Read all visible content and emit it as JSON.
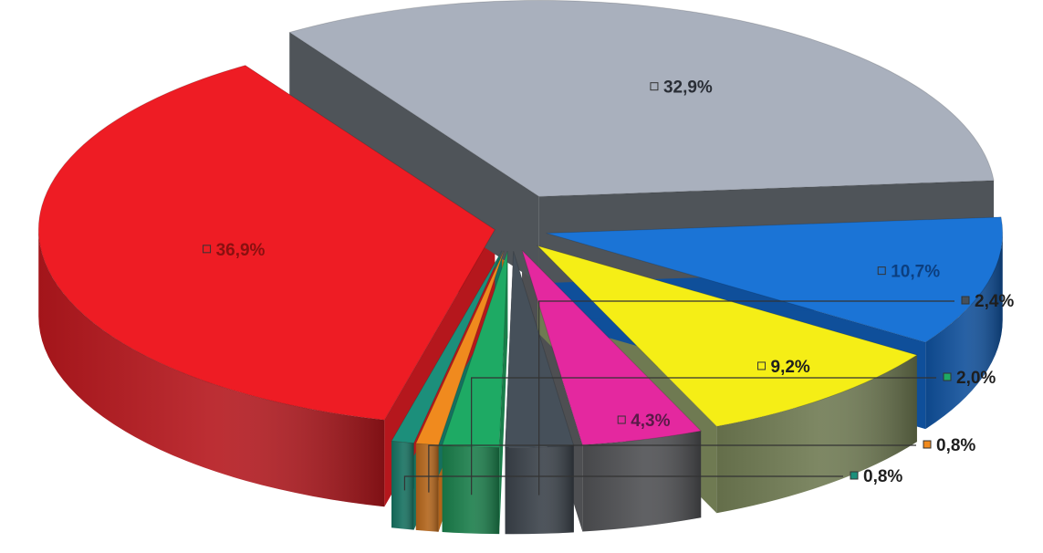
{
  "chart_data": {
    "type": "pie",
    "three_d": true,
    "exploded": true,
    "legend": "none",
    "slices": [
      {
        "label": "36,9%",
        "value": 36.9,
        "color": "#ee1c24",
        "side_color": "#b5171d"
      },
      {
        "label": "32,9%",
        "value": 32.9,
        "color": "#a9b0bd",
        "side_color": "#4f5459"
      },
      {
        "label": "10,7%",
        "value": 10.7,
        "color": "#1b74d6",
        "side_color": "#0f4f9a"
      },
      {
        "label": "9,2%",
        "value": 9.2,
        "color": "#f5ee16",
        "side_color": "#6f7a52"
      },
      {
        "label": "4,3%",
        "value": 4.3,
        "color": "#e4289f",
        "side_color": "#4e4f52"
      },
      {
        "label": "2,4%",
        "value": 2.4,
        "color": "#46505a",
        "side_color": "#3a4149"
      },
      {
        "label": "2,0%",
        "value": 2.0,
        "color": "#1eaa64",
        "side_color": "#1a7d4a"
      },
      {
        "label": "0,8%",
        "value": 0.8,
        "color": "#f08a1e",
        "side_color": "#b2641a"
      },
      {
        "label": "0,8%",
        "value": 0.8,
        "color": "#1c8f7b",
        "side_color": "#15705f"
      }
    ]
  }
}
